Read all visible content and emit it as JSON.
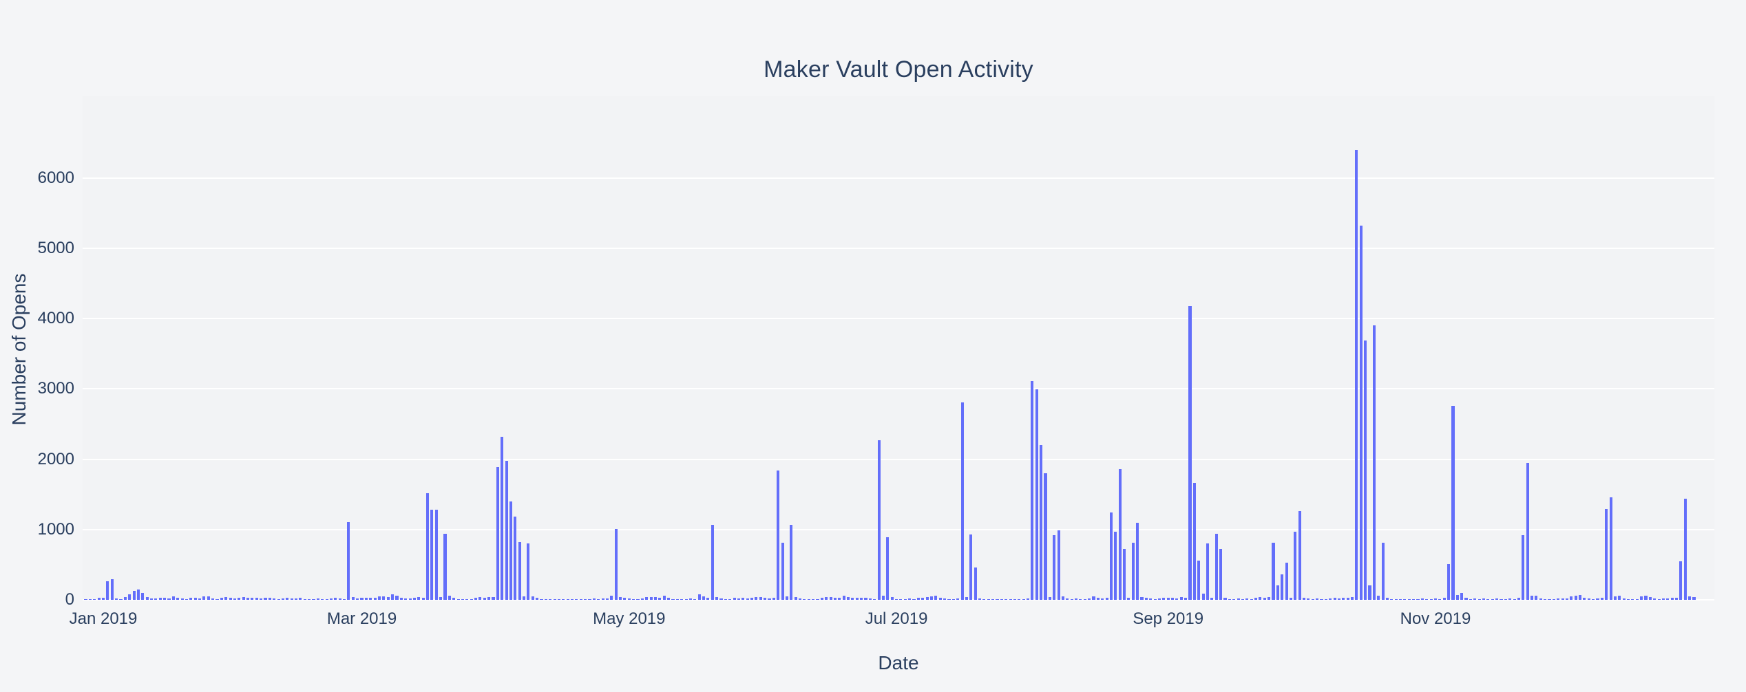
{
  "title": "Maker Vault Open Activity",
  "colors": {
    "bar": "#636EFA",
    "text": "#2a3f5f",
    "plot_background": "#f2f3f5",
    "page_background": "#f4f5f7",
    "gridline": "#ffffff"
  },
  "chart_data": {
    "type": "bar",
    "title": "Maker Vault Open Activity",
    "xlabel": "Date",
    "ylabel": "Number of Opens",
    "legend": "none",
    "grid": true,
    "bar_color": "#636EFA",
    "ylim": [
      0,
      7180
    ],
    "y_ticks": [
      0,
      1000,
      2000,
      3000,
      4000,
      5000,
      6000
    ],
    "x_ticks": [
      {
        "date": "2019-01-01",
        "label": "Jan 2019"
      },
      {
        "date": "2019-03-01",
        "label": "Mar 2019"
      },
      {
        "date": "2019-05-01",
        "label": "May 2019"
      },
      {
        "date": "2019-07-01",
        "label": "Jul 2019"
      },
      {
        "date": "2019-09-01",
        "label": "Sep 2019"
      },
      {
        "date": "2019-11-01",
        "label": "Nov 2019"
      }
    ],
    "freq": "daily",
    "start_date": "2018-12-28",
    "values": [
      15,
      10,
      8,
      25,
      25,
      260,
      290,
      20,
      12,
      35,
      80,
      125,
      145,
      98,
      40,
      22,
      18,
      25,
      30,
      22,
      45,
      30,
      20,
      15,
      25,
      30,
      20,
      50,
      45,
      18,
      12,
      30,
      38,
      25,
      20,
      30,
      35,
      28,
      25,
      30,
      22,
      28,
      25,
      20,
      15,
      22,
      28,
      20,
      18,
      25,
      12,
      10,
      15,
      20,
      12,
      10,
      18,
      32,
      20,
      15,
      1110,
      35,
      20,
      25,
      30,
      28,
      32,
      45,
      48,
      42,
      80,
      55,
      25,
      18,
      22,
      28,
      35,
      30,
      1520,
      1285,
      1285,
      40,
      940,
      60,
      25,
      15,
      10,
      12,
      8,
      30,
      35,
      30,
      35,
      40,
      1890,
      2320,
      1980,
      1400,
      1185,
      820,
      50,
      805,
      45,
      25,
      15,
      10,
      12,
      8,
      10,
      12,
      15,
      10,
      8,
      12,
      10,
      15,
      20,
      15,
      22,
      18,
      60,
      1010,
      40,
      25,
      18,
      12,
      15,
      20,
      40,
      35,
      42,
      30,
      60,
      25,
      15,
      12,
      10,
      15,
      18,
      12,
      80,
      50,
      25,
      1070,
      40,
      20,
      10,
      8,
      25,
      22,
      25,
      20,
      30,
      35,
      40,
      30,
      20,
      25,
      1840,
      810,
      45,
      1065,
      40,
      20,
      12,
      15,
      10,
      12,
      30,
      40,
      35,
      30,
      25,
      60,
      35,
      30,
      25,
      30,
      25,
      20,
      15,
      2270,
      55,
      890,
      35,
      15,
      12,
      15,
      20,
      15,
      25,
      30,
      35,
      45,
      60,
      25,
      20,
      15,
      12,
      18,
      2810,
      35,
      930,
      460,
      20,
      15,
      10,
      12,
      15,
      10,
      12,
      15,
      10,
      12,
      15,
      20,
      3110,
      2990,
      2205,
      1800,
      40,
      920,
      990,
      45,
      20,
      15,
      18,
      12,
      15,
      20,
      45,
      25,
      20,
      25,
      1245,
      970,
      1860,
      725,
      30,
      810,
      1100,
      35,
      25,
      20,
      15,
      20,
      25,
      25,
      30,
      20,
      35,
      25,
      4180,
      1665,
      560,
      85,
      805,
      30,
      940,
      725,
      25,
      15,
      12,
      18,
      15,
      20,
      15,
      25,
      35,
      30,
      40,
      815,
      210,
      360,
      530,
      30,
      970,
      1265,
      30,
      20,
      15,
      18,
      12,
      15,
      20,
      25,
      20,
      30,
      25,
      35,
      6400,
      5320,
      3690,
      205,
      3900,
      60,
      815,
      25,
      15,
      12,
      10,
      15,
      12,
      10,
      15,
      18,
      12,
      15,
      20,
      15,
      25,
      510,
      2760,
      70,
      100,
      25,
      15,
      20,
      15,
      18,
      12,
      15,
      20,
      15,
      12,
      18,
      15,
      25,
      920,
      1950,
      60,
      55,
      20,
      15,
      12,
      15,
      18,
      20,
      20,
      50,
      55,
      70,
      25,
      20,
      15,
      20,
      25,
      1290,
      1460,
      50,
      55,
      20,
      15,
      12,
      15,
      45,
      60,
      40,
      20,
      15,
      18,
      20,
      25,
      30,
      550,
      1440,
      45,
      35
    ]
  }
}
